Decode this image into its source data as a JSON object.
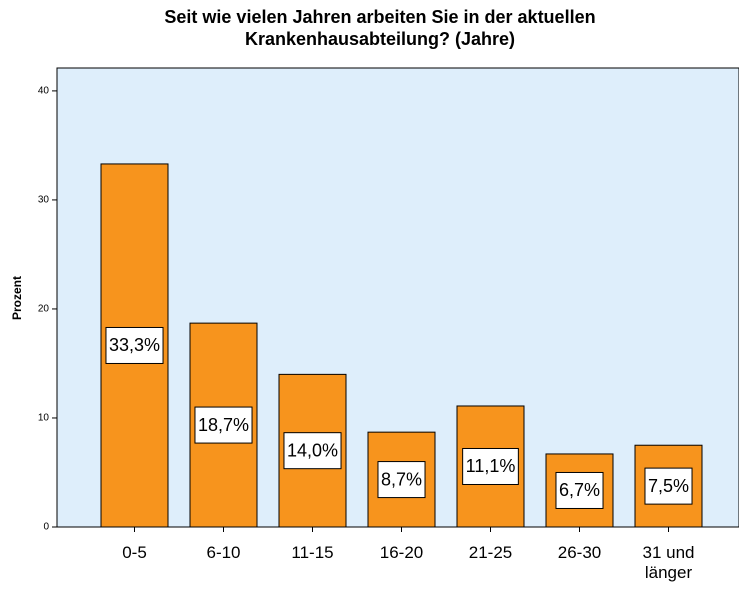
{
  "chart_data": {
    "type": "bar",
    "title": [
      "Seit wie vielen Jahren arbeiten Sie in der aktuellen",
      "Krankenhausabteilung? (Jahre)"
    ],
    "y_label": "Prozent",
    "categories": [
      "0-5",
      "6-10",
      "11-15",
      "16-20",
      "21-25",
      "26-30",
      "31 und länger"
    ],
    "values": [
      33.3,
      18.7,
      14.0,
      8.7,
      11.1,
      6.7,
      7.5
    ],
    "value_labels": [
      "33,3%",
      "18,7%",
      "14,0%",
      "8,7%",
      "11,1%",
      "6,7%",
      "7,5%"
    ],
    "color": "#f7941d",
    "ylim": [
      0,
      42.1
    ],
    "yticks": [
      0,
      10,
      20,
      30,
      40
    ],
    "grid": false
  }
}
